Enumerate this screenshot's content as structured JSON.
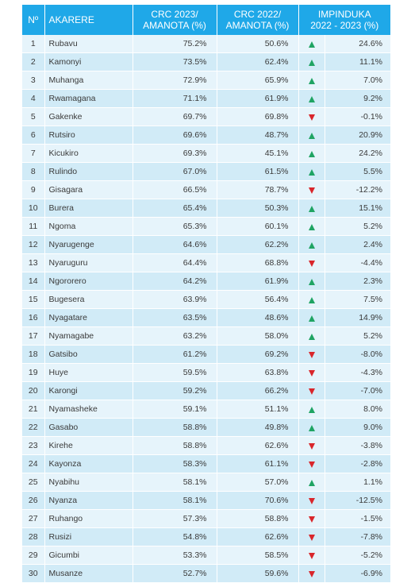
{
  "header": {
    "no": "Nº",
    "district": "AKARERE",
    "crc2023_line1": "CRC 2023/",
    "crc2023_line2": "AMANOTA (%)",
    "crc2022_line1": "CRC 2022/",
    "crc2022_line2": "AMANOTA (%)",
    "change_line1": "IMPINDUKA",
    "change_line2": "2022 - 2023 (%)"
  },
  "colors": {
    "header_bg": "#1fa8e8",
    "row_light": "#e6f4fb",
    "row_dark": "#d1ebf7",
    "up": "#1fa463",
    "down": "#d9262b"
  },
  "rows": [
    {
      "no": "1",
      "district": "Rubavu",
      "crc2023": "75.2%",
      "crc2022": "50.6%",
      "trend": "up",
      "change": "24.6%"
    },
    {
      "no": "2",
      "district": "Kamonyi",
      "crc2023": "73.5%",
      "crc2022": "62.4%",
      "trend": "up",
      "change": "11.1%"
    },
    {
      "no": "3",
      "district": "Muhanga",
      "crc2023": "72.9%",
      "crc2022": "65.9%",
      "trend": "up",
      "change": "7.0%"
    },
    {
      "no": "4",
      "district": "Rwamagana",
      "crc2023": "71.1%",
      "crc2022": "61.9%",
      "trend": "up",
      "change": "9.2%"
    },
    {
      "no": "5",
      "district": "Gakenke",
      "crc2023": "69.7%",
      "crc2022": "69.8%",
      "trend": "down",
      "change": "-0.1%"
    },
    {
      "no": "6",
      "district": "Rutsiro",
      "crc2023": "69.6%",
      "crc2022": "48.7%",
      "trend": "up",
      "change": "20.9%"
    },
    {
      "no": "7",
      "district": "Kicukiro",
      "crc2023": "69.3%",
      "crc2022": "45.1%",
      "trend": "up",
      "change": "24.2%"
    },
    {
      "no": "8",
      "district": "Rulindo",
      "crc2023": "67.0%",
      "crc2022": "61.5%",
      "trend": "up",
      "change": "5.5%"
    },
    {
      "no": "9",
      "district": "Gisagara",
      "crc2023": "66.5%",
      "crc2022": "78.7%",
      "trend": "down",
      "change": "-12.2%"
    },
    {
      "no": "10",
      "district": "Burera",
      "crc2023": "65.4%",
      "crc2022": "50.3%",
      "trend": "up",
      "change": "15.1%"
    },
    {
      "no": "11",
      "district": "Ngoma",
      "crc2023": "65.3%",
      "crc2022": "60.1%",
      "trend": "up",
      "change": "5.2%"
    },
    {
      "no": "12",
      "district": "Nyarugenge",
      "crc2023": "64.6%",
      "crc2022": "62.2%",
      "trend": "up",
      "change": "2.4%"
    },
    {
      "no": "13",
      "district": "Nyaruguru",
      "crc2023": "64.4%",
      "crc2022": "68.8%",
      "trend": "down",
      "change": "-4.4%"
    },
    {
      "no": "14",
      "district": "Ngororero",
      "crc2023": "64.2%",
      "crc2022": "61.9%",
      "trend": "up",
      "change": "2.3%"
    },
    {
      "no": "15",
      "district": "Bugesera",
      "crc2023": "63.9%",
      "crc2022": "56.4%",
      "trend": "up",
      "change": "7.5%"
    },
    {
      "no": "16",
      "district": "Nyagatare",
      "crc2023": "63.5%",
      "crc2022": "48.6%",
      "trend": "up",
      "change": "14.9%"
    },
    {
      "no": "17",
      "district": "Nyamagabe",
      "crc2023": "63.2%",
      "crc2022": "58.0%",
      "trend": "up",
      "change": "5.2%"
    },
    {
      "no": "18",
      "district": "Gatsibo",
      "crc2023": "61.2%",
      "crc2022": "69.2%",
      "trend": "down",
      "change": "-8.0%"
    },
    {
      "no": "19",
      "district": "Huye",
      "crc2023": "59.5%",
      "crc2022": "63.8%",
      "trend": "down",
      "change": "-4.3%"
    },
    {
      "no": "20",
      "district": "Karongi",
      "crc2023": "59.2%",
      "crc2022": "66.2%",
      "trend": "down",
      "change": "-7.0%"
    },
    {
      "no": "21",
      "district": "Nyamasheke",
      "crc2023": "59.1%",
      "crc2022": "51.1%",
      "trend": "up",
      "change": "8.0%"
    },
    {
      "no": "22",
      "district": "Gasabo",
      "crc2023": "58.8%",
      "crc2022": "49.8%",
      "trend": "up",
      "change": "9.0%"
    },
    {
      "no": "23",
      "district": "Kirehe",
      "crc2023": "58.8%",
      "crc2022": "62.6%",
      "trend": "down",
      "change": "-3.8%"
    },
    {
      "no": "24",
      "district": "Kayonza",
      "crc2023": "58.3%",
      "crc2022": "61.1%",
      "trend": "down",
      "change": "-2.8%"
    },
    {
      "no": "25",
      "district": "Nyabihu",
      "crc2023": "58.1%",
      "crc2022": "57.0%",
      "trend": "up",
      "change": "1.1%"
    },
    {
      "no": "26",
      "district": "Nyanza",
      "crc2023": "58.1%",
      "crc2022": "70.6%",
      "trend": "down",
      "change": "-12.5%"
    },
    {
      "no": "27",
      "district": "Ruhango",
      "crc2023": "57.3%",
      "crc2022": "58.8%",
      "trend": "down",
      "change": "-1.5%"
    },
    {
      "no": "28",
      "district": "Rusizi",
      "crc2023": "54.8%",
      "crc2022": "62.6%",
      "trend": "down",
      "change": "-7.8%"
    },
    {
      "no": "29",
      "district": "Gicumbi",
      "crc2023": "53.3%",
      "crc2022": "58.5%",
      "trend": "down",
      "change": "-5.2%"
    },
    {
      "no": "30",
      "district": "Musanze",
      "crc2023": "52.7%",
      "crc2022": "59.6%",
      "trend": "down",
      "change": "-6.9%"
    }
  ]
}
